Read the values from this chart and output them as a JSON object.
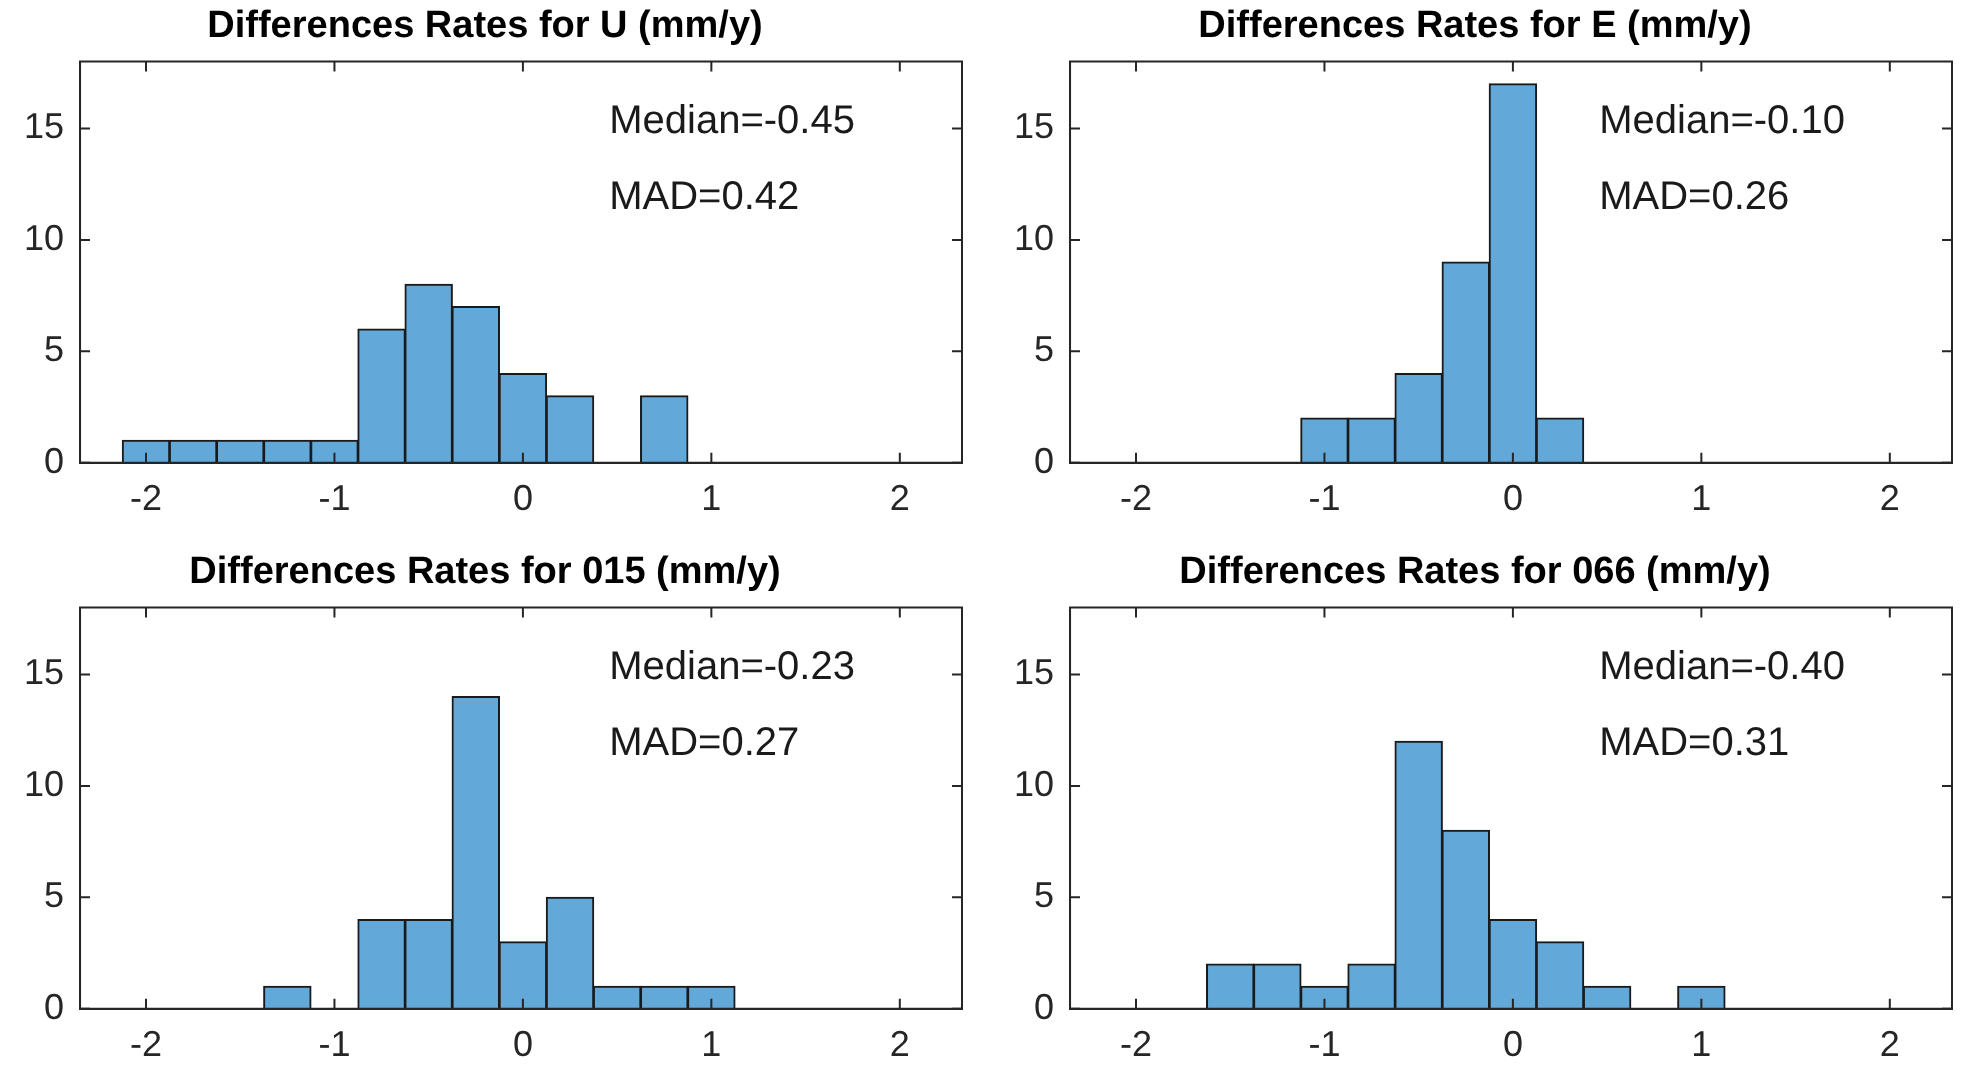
{
  "chart_data": [
    {
      "type": "histogram",
      "title": "Differences Rates for U (mm/y)",
      "bins": [
        -2.125,
        -1.875,
        -1.625,
        -1.375,
        -1.125,
        -0.875,
        -0.625,
        -0.375,
        -0.125,
        0.125,
        0.375,
        0.625,
        0.875
      ],
      "values": [
        1,
        1,
        1,
        1,
        1,
        6,
        8,
        7,
        4,
        3,
        0,
        3
      ],
      "color": "#62a8d8",
      "xlim": [
        -2.35,
        2.33
      ],
      "ylim": [
        0,
        18
      ],
      "xticks": [
        -2,
        -1,
        0,
        1,
        2
      ],
      "yticks": [
        0,
        5,
        10,
        15
      ],
      "grid": false,
      "legend": false,
      "annotations": [
        "Median=-0.45",
        "MAD=0.42"
      ]
    },
    {
      "type": "histogram",
      "title": "Differences Rates for E (mm/y)",
      "bins": [
        -1.125,
        -0.875,
        -0.625,
        -0.375,
        -0.125,
        0.125,
        0.375
      ],
      "values": [
        2,
        2,
        4,
        9,
        17,
        2
      ],
      "color": "#62a8d8",
      "xlim": [
        -2.35,
        2.33
      ],
      "ylim": [
        0,
        18
      ],
      "xticks": [
        -2,
        -1,
        0,
        1,
        2
      ],
      "yticks": [
        0,
        5,
        10,
        15
      ],
      "grid": false,
      "legend": false,
      "annotations": [
        "Median=-0.10",
        "MAD=0.26"
      ]
    },
    {
      "type": "histogram",
      "title": "Differences Rates for 015 (mm/y)",
      "bins": [
        -1.375,
        -1.125,
        -0.875,
        -0.625,
        -0.375,
        -0.125,
        0.125,
        0.375,
        0.625,
        0.875,
        1.125
      ],
      "values": [
        1,
        0,
        4,
        4,
        14,
        3,
        5,
        1,
        1,
        1
      ],
      "color": "#62a8d8",
      "xlim": [
        -2.35,
        2.33
      ],
      "ylim": [
        0,
        18
      ],
      "xticks": [
        -2,
        -1,
        0,
        1,
        2
      ],
      "yticks": [
        0,
        5,
        10,
        15
      ],
      "grid": false,
      "legend": false,
      "annotations": [
        "Median=-0.23",
        "MAD=0.27"
      ]
    },
    {
      "type": "histogram",
      "title": "Differences Rates for 066 (mm/y)",
      "bins": [
        -1.625,
        -1.375,
        -1.125,
        -0.875,
        -0.625,
        -0.375,
        -0.125,
        0.125,
        0.375,
        0.625,
        0.875,
        1.125
      ],
      "values": [
        2,
        2,
        1,
        2,
        12,
        8,
        4,
        3,
        1,
        0,
        1
      ],
      "color": "#62a8d8",
      "xlim": [
        -2.35,
        2.33
      ],
      "ylim": [
        0,
        18
      ],
      "xticks": [
        -2,
        -1,
        0,
        1,
        2
      ],
      "yticks": [
        0,
        5,
        10,
        15
      ],
      "grid": false,
      "legend": false,
      "annotations": [
        "Median=-0.40",
        "MAD=0.31"
      ]
    }
  ]
}
